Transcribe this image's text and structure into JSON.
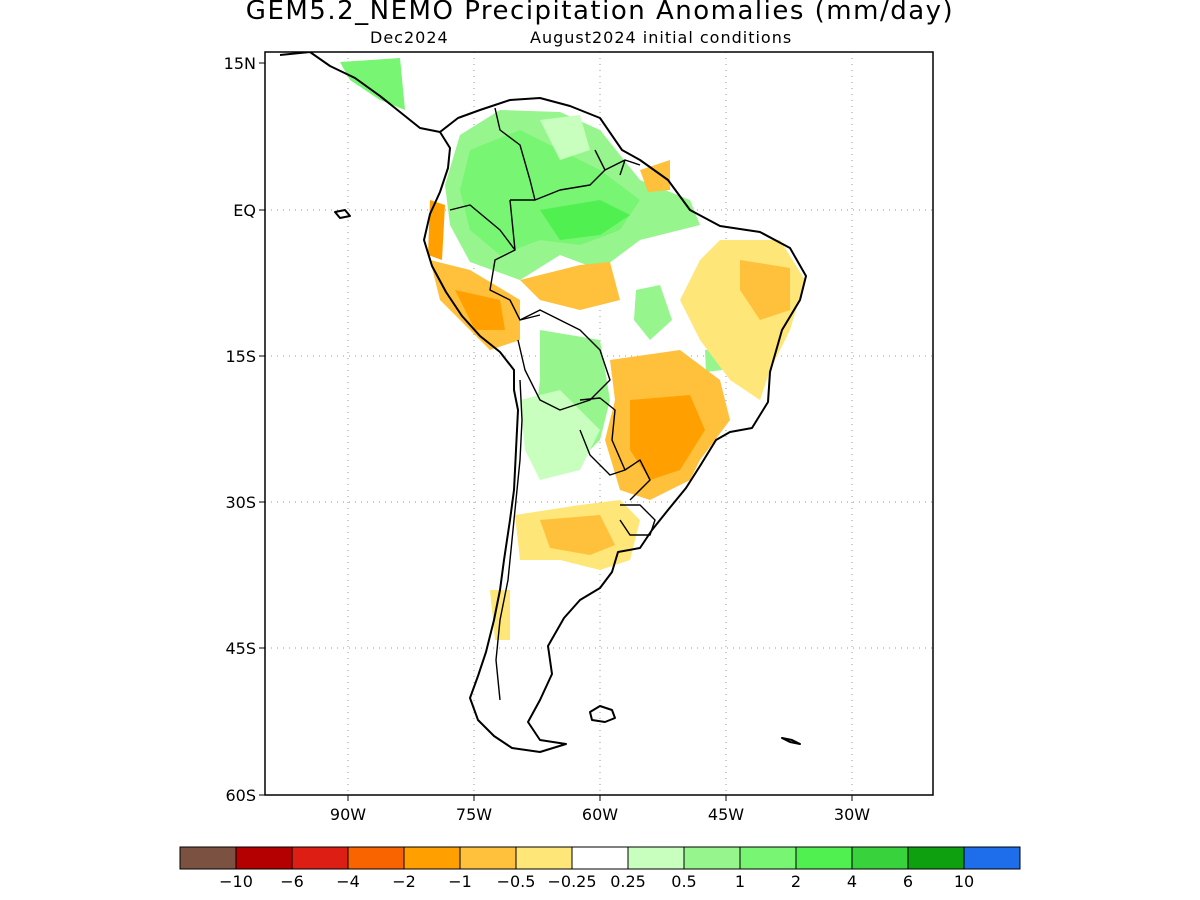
{
  "title": "GEM5.2_NEMO Precipitation Anomalies (mm/day)",
  "subtitle_left": "Dec2024",
  "subtitle_right": "August2024 initial conditions",
  "lat_ticks": [
    "15N",
    "EQ",
    "15S",
    "30S",
    "45S",
    "60S"
  ],
  "lon_ticks": [
    "90W",
    "75W",
    "60W",
    "45W",
    "30W"
  ],
  "colorbar": {
    "colors": [
      "#7b5142",
      "#b40000",
      "#dc1e14",
      "#fa6400",
      "#ffa000",
      "#ffc03c",
      "#ffe678",
      "#ffffff",
      "#c8ffbe",
      "#96f58c",
      "#78f573",
      "#50f050",
      "#37d23c",
      "#0fa00f",
      "#1e6eeb"
    ],
    "labels": [
      "−10",
      "−6",
      "−4",
      "−2",
      "−1",
      "−0.5",
      "−0.25",
      "0.25",
      "0.5",
      "1",
      "2",
      "4",
      "6",
      "10"
    ]
  },
  "chart_data": {
    "type": "heatmap",
    "title": "GEM5.2_NEMO Precipitation Anomalies (mm/day)",
    "subtitle": [
      "Dec2024",
      "August2024 initial conditions"
    ],
    "variable": "Precipitation anomaly",
    "units": "mm/day",
    "region": "South America",
    "lat_range": [
      -60,
      15
    ],
    "lon_range": [
      -100,
      -20
    ],
    "contour_levels": [
      -10,
      -6,
      -4,
      -2,
      -1,
      -0.5,
      -0.25,
      0.25,
      0.5,
      1,
      2,
      4,
      6,
      10
    ],
    "grid": true,
    "legend_position": "bottom"
  }
}
